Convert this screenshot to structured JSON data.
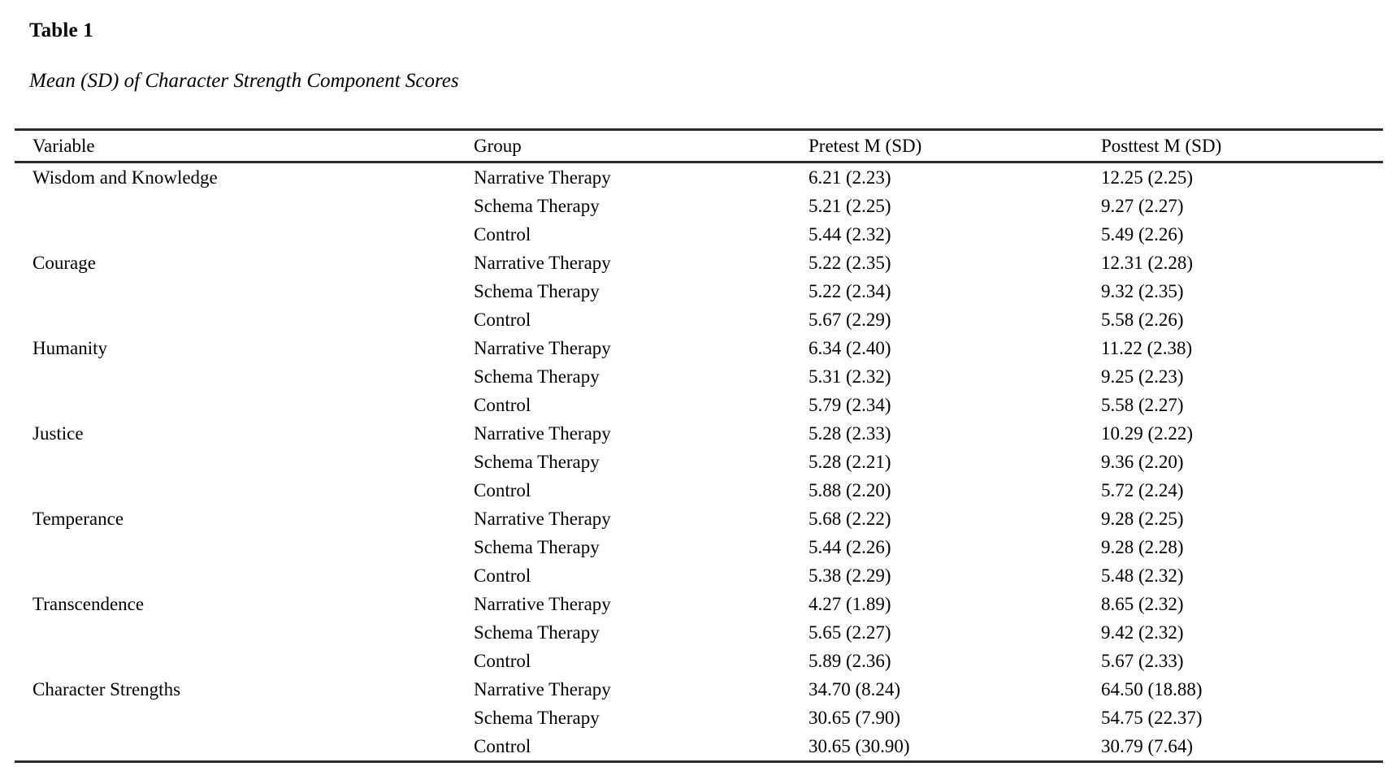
{
  "header": {
    "table_number": "Table 1",
    "caption": "Mean (SD) of Character Strength Component Scores"
  },
  "table": {
    "columns": [
      "Variable",
      "Group",
      "Pretest M (SD)",
      "Posttest M (SD)"
    ],
    "rows": [
      {
        "variable": "Wisdom and Knowledge",
        "group": "Narrative Therapy",
        "pretest": "6.21 (2.23)",
        "posttest": "12.25 (2.25)"
      },
      {
        "variable": "",
        "group": "Schema Therapy",
        "pretest": "5.21 (2.25)",
        "posttest": "9.27 (2.27)"
      },
      {
        "variable": "",
        "group": "Control",
        "pretest": "5.44 (2.32)",
        "posttest": "5.49 (2.26)"
      },
      {
        "variable": "Courage",
        "group": "Narrative Therapy",
        "pretest": "5.22 (2.35)",
        "posttest": "12.31 (2.28)"
      },
      {
        "variable": "",
        "group": "Schema Therapy",
        "pretest": "5.22 (2.34)",
        "posttest": "9.32 (2.35)"
      },
      {
        "variable": "",
        "group": "Control",
        "pretest": "5.67 (2.29)",
        "posttest": "5.58 (2.26)"
      },
      {
        "variable": "Humanity",
        "group": "Narrative Therapy",
        "pretest": "6.34 (2.40)",
        "posttest": "11.22 (2.38)"
      },
      {
        "variable": "",
        "group": "Schema Therapy",
        "pretest": "5.31 (2.32)",
        "posttest": "9.25 (2.23)"
      },
      {
        "variable": "",
        "group": "Control",
        "pretest": "5.79 (2.34)",
        "posttest": "5.58 (2.27)"
      },
      {
        "variable": "Justice",
        "group": "Narrative Therapy",
        "pretest": "5.28 (2.33)",
        "posttest": "10.29 (2.22)"
      },
      {
        "variable": "",
        "group": "Schema Therapy",
        "pretest": "5.28 (2.21)",
        "posttest": "9.36 (2.20)"
      },
      {
        "variable": "",
        "group": "Control",
        "pretest": "5.88 (2.20)",
        "posttest": "5.72 (2.24)"
      },
      {
        "variable": "Temperance",
        "group": "Narrative Therapy",
        "pretest": "5.68 (2.22)",
        "posttest": "9.28 (2.25)"
      },
      {
        "variable": "",
        "group": "Schema Therapy",
        "pretest": "5.44 (2.26)",
        "posttest": "9.28 (2.28)"
      },
      {
        "variable": "",
        "group": "Control",
        "pretest": "5.38 (2.29)",
        "posttest": "5.48 (2.32)"
      },
      {
        "variable": "Transcendence",
        "group": "Narrative Therapy",
        "pretest": "4.27 (1.89)",
        "posttest": "8.65 (2.32)"
      },
      {
        "variable": "",
        "group": "Schema Therapy",
        "pretest": "5.65 (2.27)",
        "posttest": "9.42 (2.32)"
      },
      {
        "variable": "",
        "group": "Control",
        "pretest": "5.89 (2.36)",
        "posttest": "5.67 (2.33)"
      },
      {
        "variable": "Character Strengths",
        "group": "Narrative Therapy",
        "pretest": "34.70 (8.24)",
        "posttest": "64.50 (18.88)"
      },
      {
        "variable": "",
        "group": "Schema Therapy",
        "pretest": "30.65 (7.90)",
        "posttest": "54.75 (22.37)"
      },
      {
        "variable": "",
        "group": "Control",
        "pretest": "30.65 (30.90)",
        "posttest": "30.79 (7.64)"
      }
    ]
  }
}
